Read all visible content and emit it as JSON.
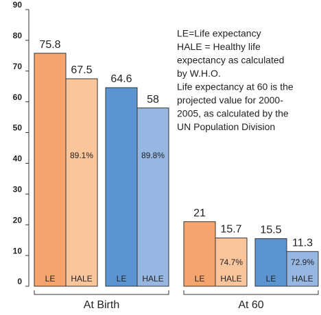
{
  "chart_data": {
    "type": "bar",
    "categories": [
      "At Birth",
      "At 60"
    ],
    "series": [
      {
        "name": "LE",
        "color": "#f6a46e",
        "values": [
          75.8,
          21
        ]
      },
      {
        "name": "HALE",
        "color": "#fbc59c",
        "values": [
          67.5,
          15.7
        ],
        "shares": [
          89.1,
          74.7
        ],
        "share_labels": [
          "89.1%",
          "74.7%"
        ]
      },
      {
        "name": "LE",
        "color": "#5b94d0",
        "values": [
          64.6,
          15.5
        ]
      },
      {
        "name": "HALE",
        "color": "#95b7e2",
        "values": [
          58,
          11.3
        ],
        "shares": [
          89.8,
          72.9
        ],
        "share_labels": [
          "89.8%",
          "72.9%"
        ]
      }
    ],
    "ylim": [
      0,
      90
    ],
    "yticks": [
      0,
      10,
      20,
      30,
      40,
      50,
      60,
      70,
      80,
      90
    ],
    "annotation": [
      "LE=Life expectancy",
      "HALE = Healthy life",
      "expectancy as calculated",
      "by W.H.O.",
      "Life expectancy at 60 is the",
      "projected value for 2000-",
      "2005, as calculated by the",
      "UN Population Division"
    ]
  }
}
